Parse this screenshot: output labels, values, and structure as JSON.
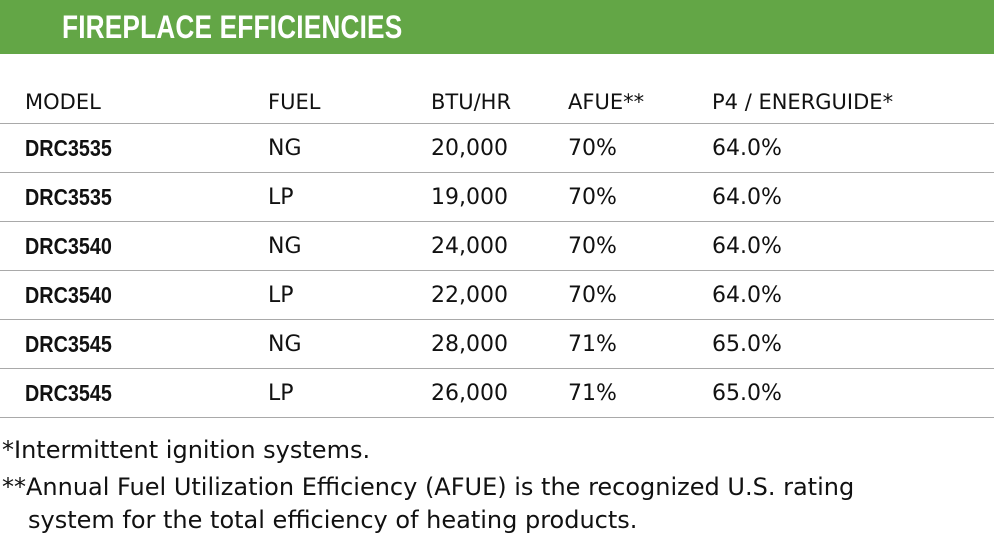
{
  "banner": {
    "title": "FIREPLACE EFFICIENCIES",
    "color": "#63a646"
  },
  "table": {
    "headers": {
      "model": "MODEL",
      "fuel": "FUEL",
      "btu": "BTU/HR",
      "afue": "AFUE**",
      "p4": "P4 / ENERGUIDE*"
    },
    "rows": [
      {
        "model": "DRC3535",
        "fuel": "NG",
        "btu": "20,000",
        "afue": "70%",
        "p4": "64.0%"
      },
      {
        "model": "DRC3535",
        "fuel": "LP",
        "btu": "19,000",
        "afue": "70%",
        "p4": "64.0%"
      },
      {
        "model": "DRC3540",
        "fuel": "NG",
        "btu": "24,000",
        "afue": "70%",
        "p4": "64.0%"
      },
      {
        "model": "DRC3540",
        "fuel": "LP",
        "btu": "22,000",
        "afue": "70%",
        "p4": "64.0%"
      },
      {
        "model": "DRC3545",
        "fuel": "NG",
        "btu": "28,000",
        "afue": "71%",
        "p4": "65.0%"
      },
      {
        "model": "DRC3545",
        "fuel": "LP",
        "btu": "26,000",
        "afue": "71%",
        "p4": "65.0%"
      }
    ]
  },
  "notes": {
    "note1": "*Intermittent ignition systems.",
    "note2_line1": "**Annual Fuel Utilization Efficiency (AFUE) is the recognized U.S. rating",
    "note2_line2": "system for the total efficiency of heating products."
  }
}
